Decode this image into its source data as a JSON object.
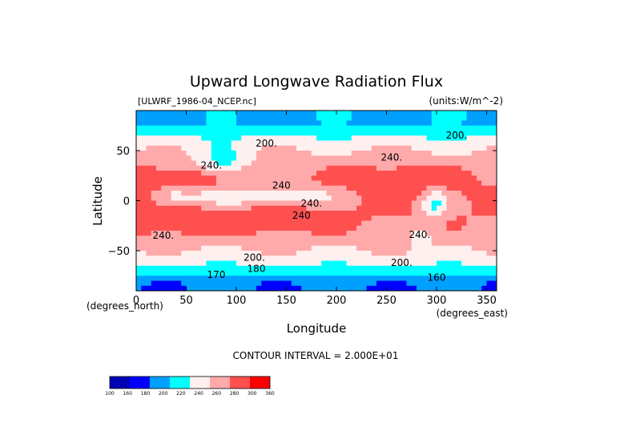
{
  "chart_data": {
    "type": "heatmap",
    "title": "Upward Longwave Radiation Flux",
    "file_label": "[ULWRF_1986-04_NCEP.nc]",
    "units_label": "(units:W/m^-2)",
    "xlabel": "Longitude",
    "ylabel": "Latitude",
    "x_unit_label": "(degrees_east)",
    "y_unit_label": "(degrees_north)",
    "xlim": [
      0,
      360
    ],
    "ylim": [
      -90,
      90
    ],
    "x_ticks": [
      {
        "value": 0,
        "label": "0"
      },
      {
        "value": 50,
        "label": "50"
      },
      {
        "value": 100,
        "label": "100"
      },
      {
        "value": 150,
        "label": "150"
      },
      {
        "value": 200,
        "label": "200"
      },
      {
        "value": 250,
        "label": "250"
      },
      {
        "value": 300,
        "label": "300"
      },
      {
        "value": 350,
        "label": "350"
      }
    ],
    "y_ticks": [
      {
        "value": 50,
        "label": "50"
      },
      {
        "value": 0,
        "label": "0"
      },
      {
        "value": -50,
        "label": "−50"
      }
    ],
    "contour_interval_label": "CONTOUR INTERVAL = 2.000E+01",
    "levels": [
      100,
      160,
      180,
      200,
      220,
      240,
      260,
      280,
      300,
      360
    ],
    "level_labels": [
      "100",
      "160",
      "180",
      "200",
      "220",
      "240",
      "260",
      "280",
      "300",
      "360"
    ],
    "colors": [
      "#0000b4",
      "#0000ff",
      "#00a0ff",
      "#00ffff",
      "#fff0f0",
      "#ffaaaa",
      "#ff5050",
      "#ff0000"
    ],
    "contour_labels": [
      {
        "lon": 130,
        "lat": 54,
        "text": "200."
      },
      {
        "lon": 320,
        "lat": 62,
        "text": "200."
      },
      {
        "lon": 255,
        "lat": 40,
        "text": "240."
      },
      {
        "lon": 75,
        "lat": 32,
        "text": "240."
      },
      {
        "lon": 145,
        "lat": 12,
        "text": "240"
      },
      {
        "lon": 175,
        "lat": -6,
        "text": "240."
      },
      {
        "lon": 165,
        "lat": -18,
        "text": "240"
      },
      {
        "lon": 27,
        "lat": -38,
        "text": "240."
      },
      {
        "lon": 283,
        "lat": -37,
        "text": "240."
      },
      {
        "lon": 118,
        "lat": -60,
        "text": "200."
      },
      {
        "lon": 265,
        "lat": -65,
        "text": "200."
      },
      {
        "lon": 120,
        "lat": -71,
        "text": "180"
      },
      {
        "lon": 80,
        "lat": -77,
        "text": "170"
      },
      {
        "lon": 300,
        "lat": -80,
        "text": "160"
      }
    ]
  }
}
